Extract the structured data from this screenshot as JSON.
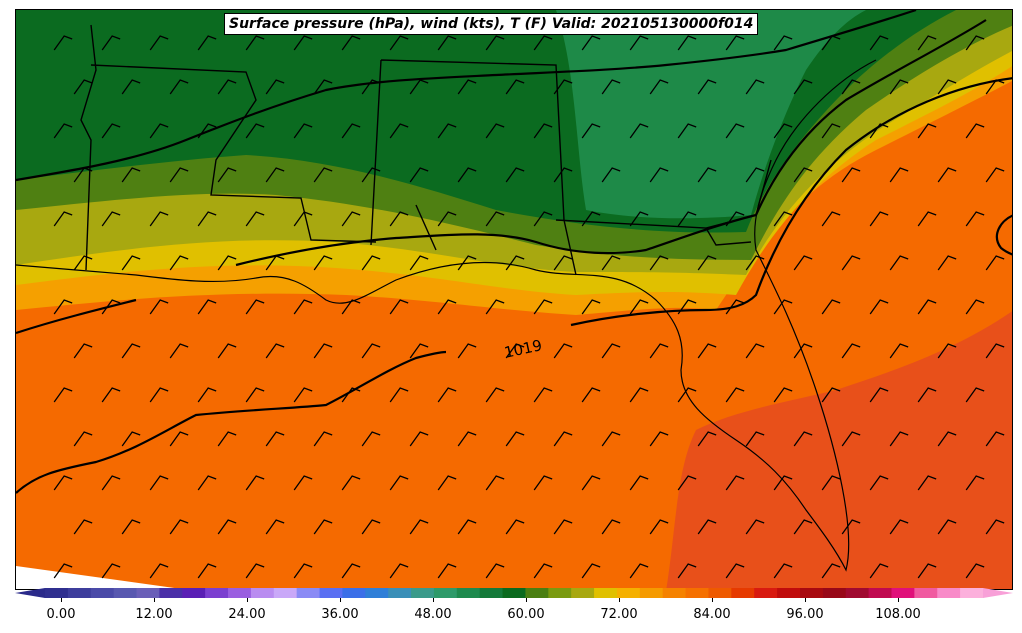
{
  "title": "Surface pressure (hPa), wind (kts), T (F) Valid: 202105130000f014",
  "contour_label": "1019",
  "colorbar": {
    "ticks": [
      "0.00",
      "12.00",
      "24.00",
      "36.00",
      "48.00",
      "60.00",
      "72.00",
      "84.00",
      "96.00",
      "108.00"
    ],
    "colors": [
      "#2f2f8f",
      "#3d3d9c",
      "#4a4aa8",
      "#5858b0",
      "#6a5fb8",
      "#4a2fa8",
      "#5a1fb5",
      "#7b3fd0",
      "#9a5fe0",
      "#b98cf0",
      "#c9a8f8",
      "#8a8af5",
      "#5a6ff2",
      "#3b6fe8",
      "#2f7fd8",
      "#3a8fb8",
      "#3a9a8a",
      "#2e9a6a",
      "#1e8a4e",
      "#147a3a",
      "#0a6a1e",
      "#4a7f12",
      "#7a9a10",
      "#a8a810",
      "#e0c000",
      "#f5b000",
      "#f59a00",
      "#f58200",
      "#f57000",
      "#ee5a00",
      "#e63a00",
      "#d81a10",
      "#c00c0c",
      "#a80a10",
      "#980818",
      "#a00a30",
      "#c00a50",
      "#e0107a",
      "#f05aa0",
      "#f88ac8",
      "#fcb0dc"
    ],
    "left_extend_color": "#2a2a8a",
    "right_extend_color": "#f8a0d8"
  }
}
